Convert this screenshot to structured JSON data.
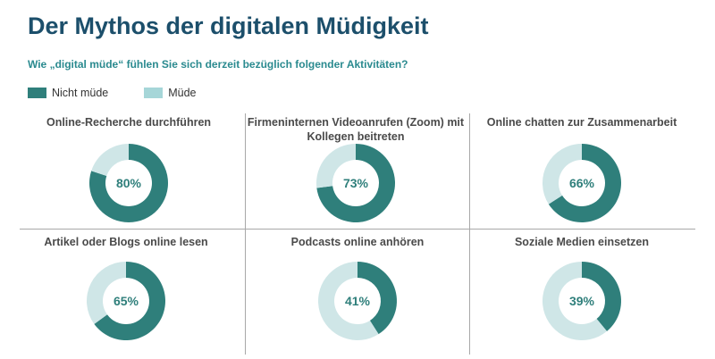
{
  "header": {
    "title": "Der Mythos der digitalen Müdigkeit",
    "subtitle": "Wie „digital müde“ fühlen Sie sich derzeit bezüglich folgender Aktivitäten?"
  },
  "legend": {
    "items": [
      {
        "label": "Nicht müde",
        "color": "#2f7f7b"
      },
      {
        "label": "Müde",
        "color": "#a6d6d8"
      }
    ]
  },
  "colors": {
    "nicht_muede": "#2f7f7b",
    "muede": "#cfe6e7",
    "label": "#2f7f7b"
  },
  "chart_data": {
    "type": "pie",
    "variant": "donut",
    "unit": "%",
    "series_names": [
      "Nicht müde",
      "Müde"
    ],
    "panels": [
      {
        "title": "Online-Recherche durchführen",
        "nicht_muede": 80,
        "muede": 20,
        "label": "80%"
      },
      {
        "title": "Firmeninternen Videoanrufen (Zoom) mit Kollegen beitreten",
        "nicht_muede": 73,
        "muede": 27,
        "label": "73%"
      },
      {
        "title": "Online chatten zur Zusammenarbeit",
        "nicht_muede": 66,
        "muede": 34,
        "label": "66%"
      },
      {
        "title": "Artikel oder Blogs online lesen",
        "nicht_muede": 65,
        "muede": 35,
        "label": "65%"
      },
      {
        "title": "Podcasts online anhören",
        "nicht_muede": 41,
        "muede": 59,
        "label": "41%"
      },
      {
        "title": "Soziale Medien einsetzen",
        "nicht_muede": 39,
        "muede": 61,
        "label": "39%"
      }
    ]
  }
}
